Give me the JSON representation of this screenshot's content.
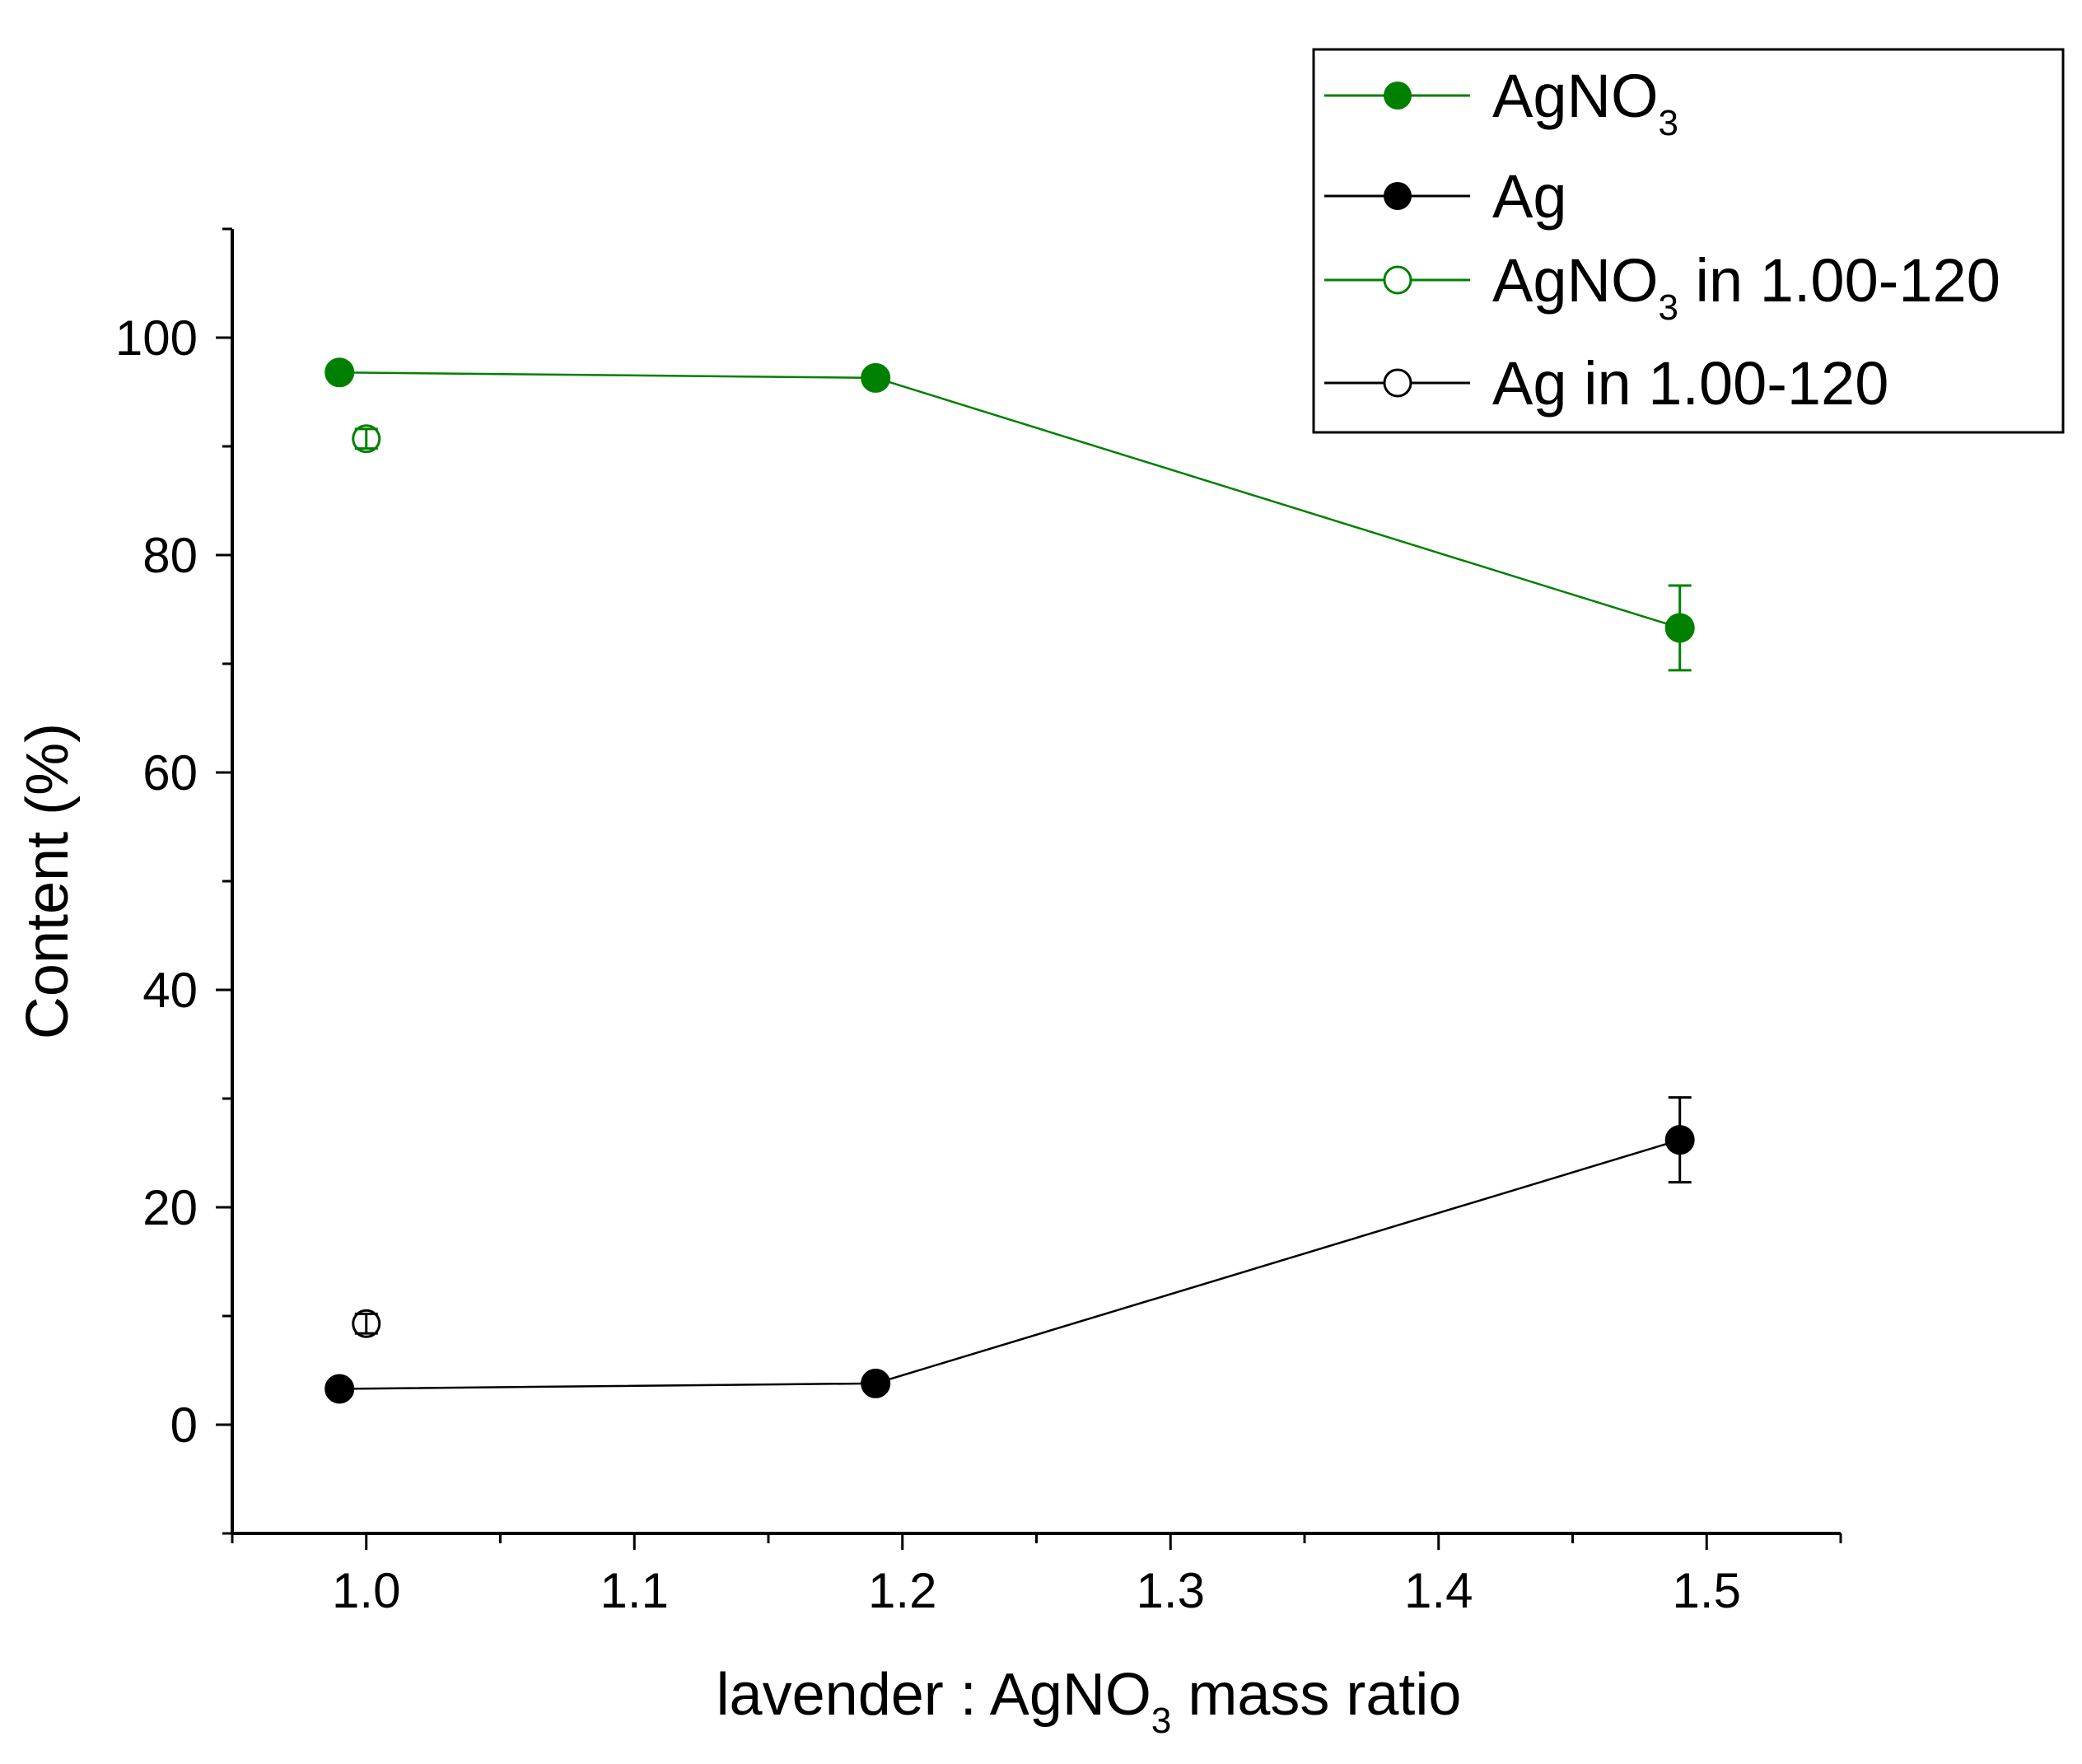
{
  "chart_data": {
    "type": "scatter",
    "xlabel_parts": [
      "lavender : AgNO",
      "3",
      " mass ratio"
    ],
    "ylabel": "Content (%)",
    "xlim": [
      0.95,
      1.55
    ],
    "ylim": [
      -10,
      110
    ],
    "x_ticks": [
      1.0,
      1.1,
      1.2,
      1.3,
      1.4,
      1.5
    ],
    "x_tick_labels": [
      "1.0",
      "1.1",
      "1.2",
      "1.3",
      "1.4",
      "1.5"
    ],
    "y_ticks": [
      0,
      20,
      40,
      60,
      80,
      100
    ],
    "y_tick_labels": [
      "0",
      "20",
      "40",
      "60",
      "80",
      "100"
    ],
    "legend_position": "top-right",
    "series": [
      {
        "key": "agno3",
        "name_parts": [
          "AgNO",
          "3",
          ""
        ],
        "color": "#008000",
        "marker": "filled",
        "connected": true,
        "points": [
          {
            "x": 0.99,
            "y": 96.8,
            "err": 0.6
          },
          {
            "x": 1.19,
            "y": 96.3,
            "err": 0.5
          },
          {
            "x": 1.49,
            "y": 73.3,
            "err": 3.9
          }
        ]
      },
      {
        "key": "ag",
        "name_parts": [
          "Ag",
          "",
          ""
        ],
        "color": "#000000",
        "marker": "filled",
        "connected": true,
        "points": [
          {
            "x": 0.99,
            "y": 3.3,
            "err": 0.6
          },
          {
            "x": 1.19,
            "y": 3.8,
            "err": 0.5
          },
          {
            "x": 1.49,
            "y": 26.2,
            "err": 3.9
          }
        ]
      },
      {
        "key": "agno3-120",
        "name_parts": [
          "AgNO",
          "3",
          " in 1.00-120"
        ],
        "color": "#008000",
        "marker": "open",
        "connected": false,
        "points": [
          {
            "x": 1.0,
            "y": 90.7,
            "err": 0.9
          }
        ]
      },
      {
        "key": "ag-120",
        "name_parts": [
          "Ag in 1.00-120",
          "",
          ""
        ],
        "color": "#000000",
        "marker": "open",
        "connected": false,
        "points": [
          {
            "x": 1.0,
            "y": 9.3,
            "err": 0.9
          }
        ]
      }
    ]
  }
}
